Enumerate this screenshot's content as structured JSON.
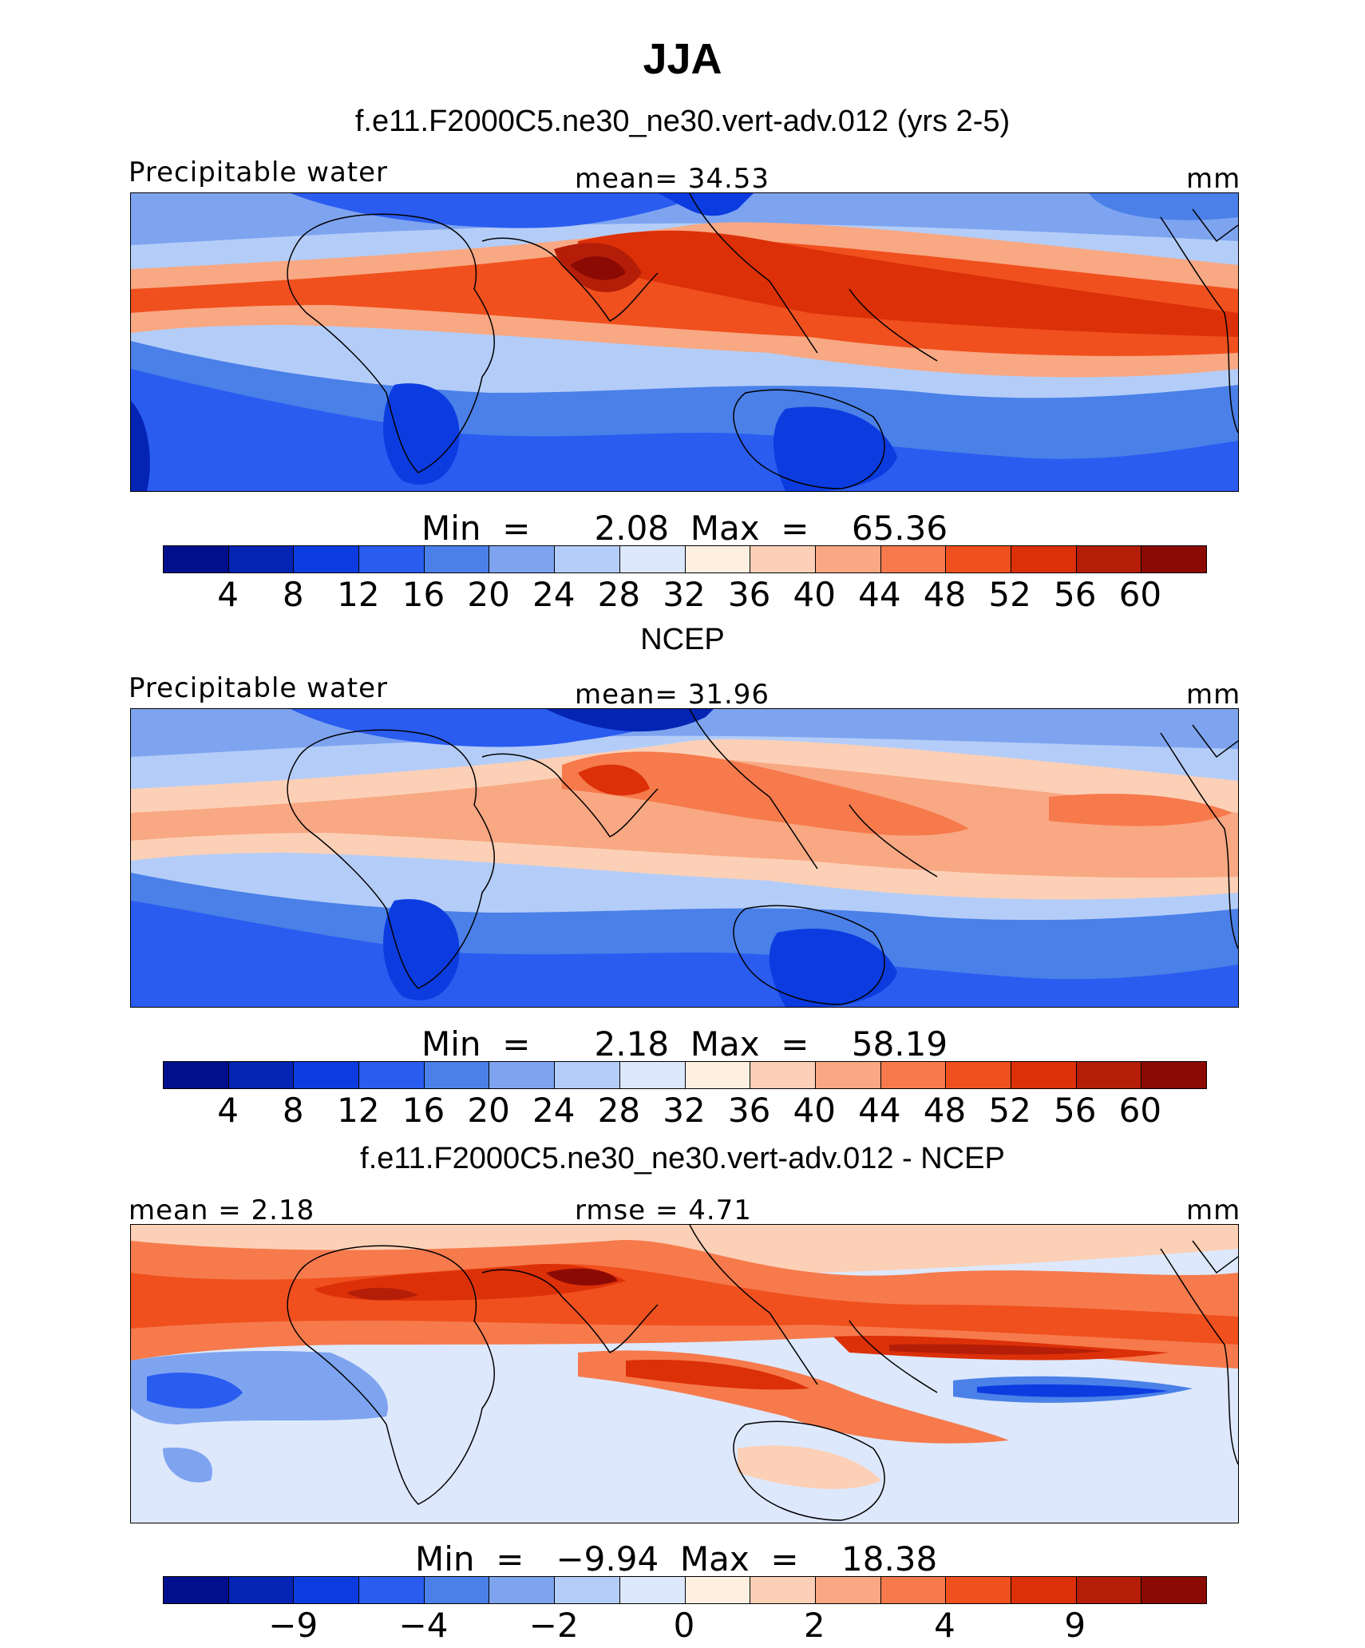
{
  "title": "JJA",
  "colors": [
    "#00108c",
    "#0424b4",
    "#0c3ce0",
    "#2a5cf0",
    "#4a80e8",
    "#7ea4f0",
    "#b4cdf8",
    "#dde8fc",
    "#fef0e0",
    "#fcd0b6",
    "#f8a883",
    "#f67a4c",
    "#f0501e",
    "#dc3008",
    "#b41e08",
    "#8c0a04"
  ],
  "panels": [
    {
      "title": "f.e11.F2000C5.ne30_ne30.vert-adv.012 (yrs 2-5)",
      "left_label": "Precipitable water",
      "center_label": "mean=   34.53",
      "right_label": "mm",
      "minmax": "Min  =      2.08  Max  =    65.36",
      "tick_labels": [
        "4",
        "8",
        "12",
        "16",
        "20",
        "24",
        "28",
        "32",
        "36",
        "40",
        "44",
        "48",
        "52",
        "56",
        "60"
      ],
      "tick_positions": [
        1,
        2,
        3,
        4,
        5,
        6,
        7,
        8,
        9,
        10,
        11,
        12,
        13,
        14,
        15
      ]
    },
    {
      "title": "NCEP",
      "left_label": "Precipitable water",
      "center_label": "mean=   31.96",
      "right_label": "mm",
      "minmax": "Min  =      2.18  Max  =    58.19",
      "tick_labels": [
        "4",
        "8",
        "12",
        "16",
        "20",
        "24",
        "28",
        "32",
        "36",
        "40",
        "44",
        "48",
        "52",
        "56",
        "60"
      ],
      "tick_positions": [
        1,
        2,
        3,
        4,
        5,
        6,
        7,
        8,
        9,
        10,
        11,
        12,
        13,
        14,
        15
      ]
    },
    {
      "title": "f.e11.F2000C5.ne30_ne30.vert-adv.012 - NCEP",
      "left_label": "mean  =    2.18",
      "center_label": "rmse  =    4.71",
      "right_label": "mm",
      "minmax": "Min  =   −9.94  Max  =    18.38",
      "tick_labels": [
        "−9",
        "−4",
        "−2",
        "0",
        "2",
        "4",
        "9"
      ],
      "tick_positions": [
        2,
        4,
        6,
        8,
        10,
        12,
        14
      ]
    }
  ],
  "chart_data": [
    {
      "type": "heatmap",
      "title": "f.e11.F2000C5.ne30_ne30.vert-adv.012 (yrs 2-5)",
      "variable": "Precipitable water",
      "units": "mm",
      "mean": 34.53,
      "min": 2.08,
      "max": 65.36,
      "contour_levels": [
        4,
        8,
        12,
        16,
        20,
        24,
        28,
        32,
        36,
        40,
        44,
        48,
        52,
        56,
        60
      ]
    },
    {
      "type": "heatmap",
      "title": "NCEP",
      "variable": "Precipitable water",
      "units": "mm",
      "mean": 31.96,
      "min": 2.18,
      "max": 58.19,
      "contour_levels": [
        4,
        8,
        12,
        16,
        20,
        24,
        28,
        32,
        36,
        40,
        44,
        48,
        52,
        56,
        60
      ]
    },
    {
      "type": "heatmap",
      "title": "f.e11.F2000C5.ne30_ne30.vert-adv.012 - NCEP",
      "units": "mm",
      "mean": 2.18,
      "rmse": 4.71,
      "min": -9.94,
      "max": 18.38,
      "contour_levels": [
        -9,
        -4,
        -2,
        0,
        2,
        4,
        9
      ]
    }
  ]
}
